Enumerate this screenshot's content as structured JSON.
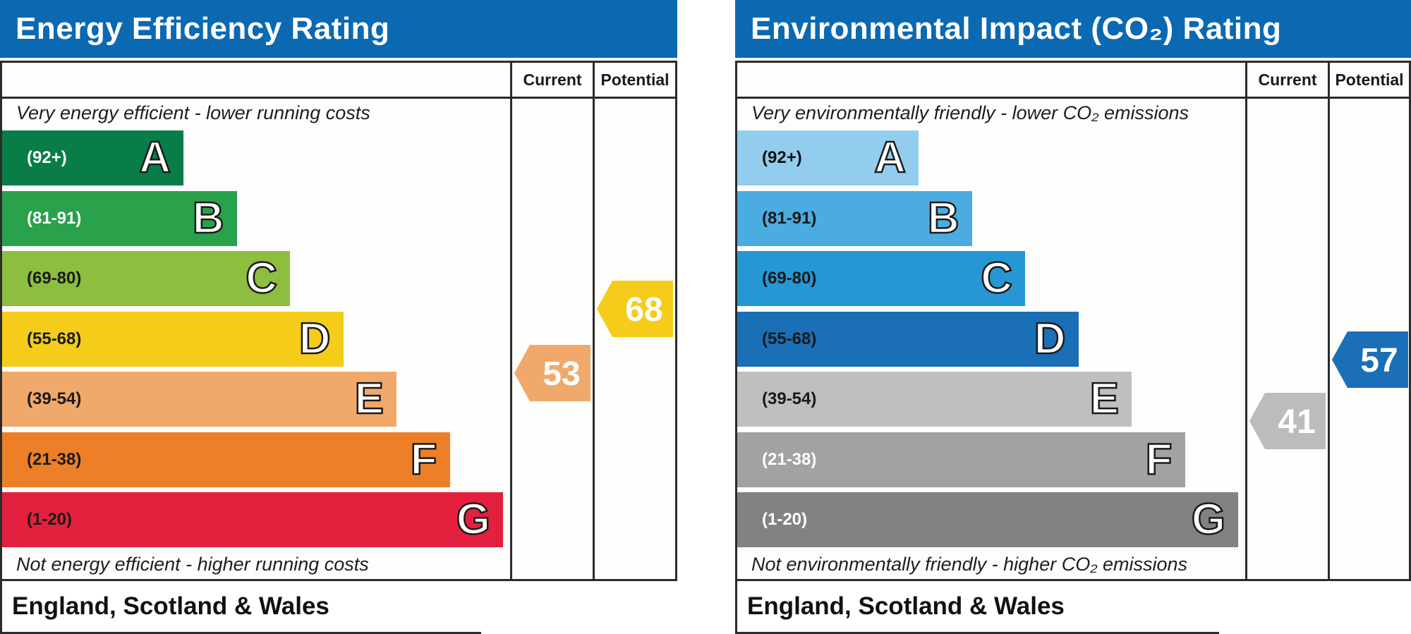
{
  "panels": [
    {
      "title": "Energy Efficiency Rating",
      "columns": [
        "Current",
        "Potential"
      ],
      "top_caption": "Very energy efficient - lower running costs",
      "bottom_caption": "Not energy efficient - higher running costs",
      "footer": "England, Scotland & Wales",
      "bands": [
        {
          "range": "(92+)",
          "letter": "A",
          "color": "#087d47",
          "text_color": "#ffffff"
        },
        {
          "range": "(81-91)",
          "letter": "B",
          "color": "#2aa14b",
          "text_color": "#ffffff"
        },
        {
          "range": "(69-80)",
          "letter": "C",
          "color": "#8dbe3f",
          "text_color": "#1a1a1a"
        },
        {
          "range": "(55-68)",
          "letter": "D",
          "color": "#f5cc19",
          "text_color": "#1a1a1a"
        },
        {
          "range": "(39-54)",
          "letter": "E",
          "color": "#f0a96a",
          "text_color": "#1a1a1a"
        },
        {
          "range": "(21-38)",
          "letter": "F",
          "color": "#ec7f27",
          "text_color": "#1a1a1a"
        },
        {
          "range": "(1-20)",
          "letter": "G",
          "color": "#e3203e",
          "text_color": "#1a1a1a"
        }
      ],
      "current": {
        "value": 53,
        "color": "#f0a96a"
      },
      "potential": {
        "value": 68,
        "color": "#f5cc19"
      }
    },
    {
      "title": "Environmental Impact (CO₂) Rating",
      "columns": [
        "Current",
        "Potential"
      ],
      "top_caption": "Very environmentally friendly - lower CO₂ emissions",
      "bottom_caption": "Not environmentally friendly - higher CO₂ emissions",
      "footer": "England, Scotland & Wales",
      "bands": [
        {
          "range": "(92+)",
          "letter": "A",
          "color": "#92cdee",
          "text_color": "#111111"
        },
        {
          "range": "(81-91)",
          "letter": "B",
          "color": "#4aace0",
          "text_color": "#1a1a1a"
        },
        {
          "range": "(69-80)",
          "letter": "C",
          "color": "#2697d4",
          "text_color": "#1a1a1a"
        },
        {
          "range": "(55-68)",
          "letter": "D",
          "color": "#1a6fb6",
          "text_color": "#1a1a1a"
        },
        {
          "range": "(39-54)",
          "letter": "E",
          "color": "#c0bfbd",
          "text_color": "#1a1a1a"
        },
        {
          "range": "(21-38)",
          "letter": "F",
          "color": "#a3a2a0",
          "text_color": "#ffffff"
        },
        {
          "range": "(1-20)",
          "letter": "G",
          "color": "#828282",
          "text_color": "#ffffff"
        }
      ],
      "current": {
        "value": 41,
        "color": "#bdbcba"
      },
      "potential": {
        "value": 57,
        "color": "#1a6fb6"
      }
    }
  ],
  "chart_data": [
    {
      "type": "bar",
      "title": "Energy Efficiency Rating",
      "categories": [
        "A",
        "B",
        "C",
        "D",
        "E",
        "F",
        "G"
      ],
      "ranges": [
        "(92+)",
        "(81-91)",
        "(69-80)",
        "(55-68)",
        "(39-54)",
        "(21-38)",
        "(1-20)"
      ],
      "current": 53,
      "potential": 68
    },
    {
      "type": "bar",
      "title": "Environmental Impact (CO₂) Rating",
      "categories": [
        "A",
        "B",
        "C",
        "D",
        "E",
        "F",
        "G"
      ],
      "ranges": [
        "(92+)",
        "(81-91)",
        "(69-80)",
        "(55-68)",
        "(39-54)",
        "(21-38)",
        "(1-20)"
      ],
      "current": 41,
      "potential": 57
    }
  ]
}
